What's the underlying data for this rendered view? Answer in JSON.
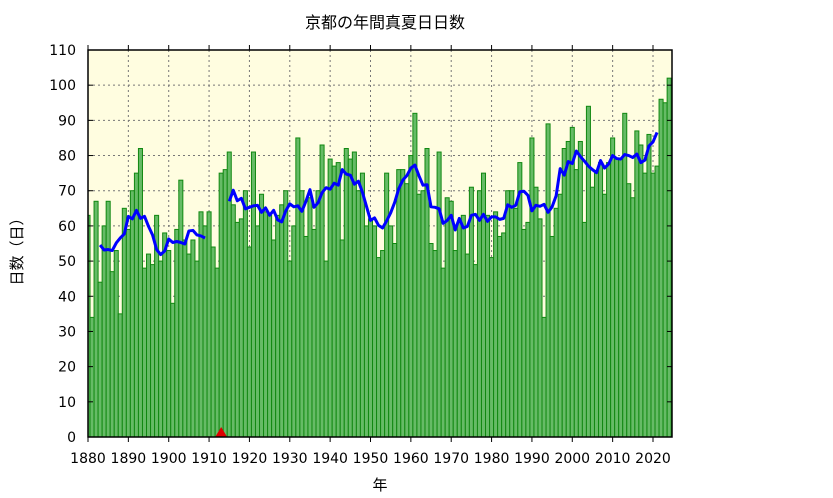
{
  "chart_data": {
    "type": "bar",
    "title": "京都の年間真夏日日数",
    "xlabel": "年",
    "ylabel": "日数（日）",
    "xlim": [
      1880,
      2024
    ],
    "ylim": [
      0,
      110
    ],
    "grid": true,
    "x_ticks": [
      1880,
      1890,
      1900,
      1910,
      1920,
      1930,
      1940,
      1950,
      1960,
      1970,
      1980,
      1990,
      2000,
      2010,
      2020
    ],
    "y_ticks": [
      0,
      10,
      20,
      30,
      40,
      50,
      60,
      70,
      80,
      90,
      100,
      110
    ],
    "start_year": 1880,
    "values": [
      63,
      34,
      67,
      44,
      60,
      67,
      47,
      53,
      35,
      65,
      59,
      70,
      75,
      82,
      48,
      52,
      49,
      63,
      50,
      58,
      53,
      38,
      59,
      73,
      56,
      52,
      56,
      50,
      64,
      60,
      64,
      54,
      48,
      75,
      76,
      81,
      66,
      61,
      62,
      70,
      54,
      81,
      60,
      69,
      64,
      63,
      56,
      63,
      66,
      70,
      50,
      60,
      85,
      70,
      57,
      68,
      59,
      70,
      83,
      50,
      79,
      77,
      78,
      56,
      82,
      79,
      81,
      70,
      75,
      60,
      62,
      60,
      51,
      53,
      75,
      60,
      55,
      76,
      76,
      72,
      80,
      92,
      69,
      70,
      82,
      55,
      53,
      81,
      48,
      68,
      67,
      53,
      61,
      63,
      52,
      71,
      49,
      70,
      75,
      63,
      51,
      64,
      57,
      58,
      70,
      70,
      65,
      78,
      59,
      61,
      85,
      71,
      62,
      34,
      89,
      57,
      65,
      69,
      82,
      84,
      88,
      76,
      84,
      61,
      94,
      71,
      75,
      78,
      69,
      78,
      85,
      79,
      79,
      92,
      72,
      68,
      87,
      83,
      75,
      86,
      75,
      77,
      96,
      95,
      102
    ],
    "moving_average": {
      "window_years": 7,
      "color": "#0000ff"
    },
    "markers": [
      {
        "year": 1913,
        "shape": "triangle",
        "color": "#dd0000"
      }
    ],
    "colors": {
      "bar_fill": "#66bb66",
      "bar_stroke": "#118811",
      "plot_bg": "#fffde0"
    }
  }
}
